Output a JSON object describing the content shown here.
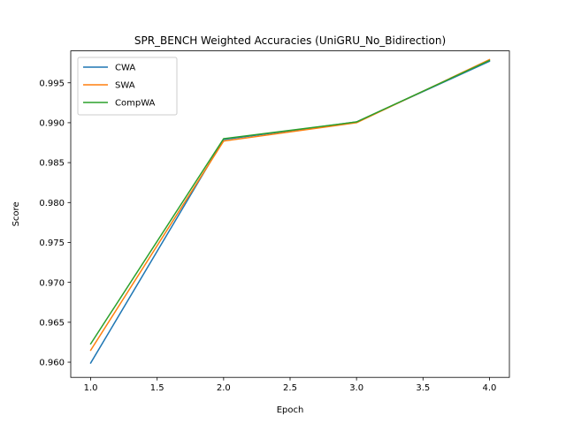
{
  "chart_data": {
    "type": "line",
    "title": "SPR_BENCH Weighted Accuracies (UniGRU_No_Bidirection)",
    "xlabel": "Epoch",
    "ylabel": "Score",
    "xlim": [
      0.85,
      4.15
    ],
    "ylim": [
      0.9581,
      0.999
    ],
    "xticks": [
      1.0,
      1.5,
      2.0,
      2.5,
      3.0,
      3.5,
      4.0
    ],
    "xtick_labels": [
      "1.0",
      "1.5",
      "2.0",
      "2.5",
      "3.0",
      "3.5",
      "4.0"
    ],
    "yticks": [
      0.96,
      0.965,
      0.97,
      0.975,
      0.98,
      0.985,
      0.99,
      0.995
    ],
    "ytick_labels": [
      "0.960",
      "0.965",
      "0.970",
      "0.975",
      "0.980",
      "0.985",
      "0.990",
      "0.995"
    ],
    "grid": false,
    "legend_position": "top-left",
    "x": [
      1.0,
      2.0,
      3.0,
      4.0
    ],
    "series": [
      {
        "name": "CWA",
        "color": "#1f77b4",
        "values": [
          0.9599,
          0.9879,
          0.9901,
          0.9977
        ]
      },
      {
        "name": "SWA",
        "color": "#ff7f0e",
        "values": [
          0.9615,
          0.9877,
          0.99,
          0.9979
        ]
      },
      {
        "name": "CompWA",
        "color": "#2ca02c",
        "values": [
          0.9623,
          0.988,
          0.9901,
          0.9978
        ]
      }
    ]
  }
}
